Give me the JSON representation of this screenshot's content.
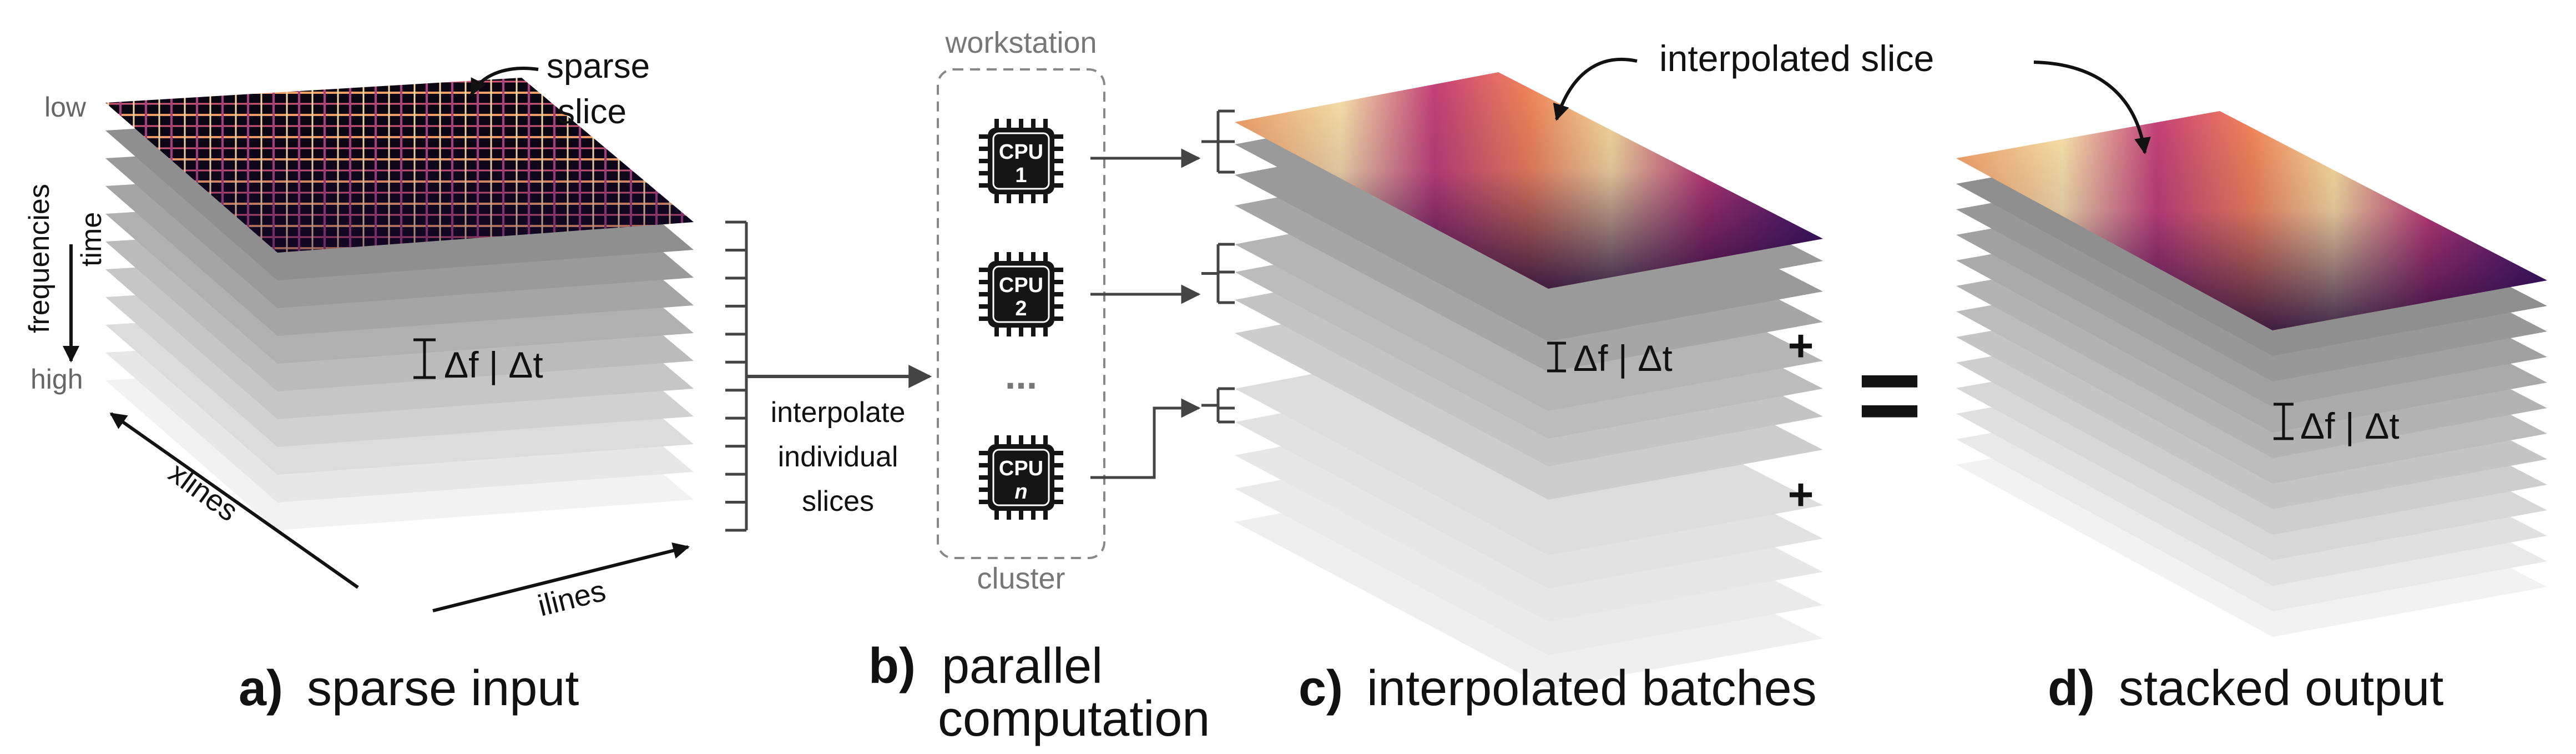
{
  "panel_a": {
    "callout": [
      "sparse",
      "slice"
    ],
    "freq_label": "frequencies",
    "time_label": "time",
    "low_label": "low",
    "high_label": "high",
    "delta_label": "Δf | Δt",
    "xlines_label": "xlines",
    "ilines_label": "ilines",
    "interpolate_label": [
      "interpolate",
      "individual",
      "slices"
    ],
    "caption_letter": "a)",
    "caption_text": "sparse input"
  },
  "panel_b": {
    "workstation_label": "workstation",
    "cluster_label": "cluster",
    "cpus": [
      {
        "top": "CPU",
        "num": "1"
      },
      {
        "top": "CPU",
        "num": "2"
      },
      {
        "top": "CPU",
        "num": "n"
      }
    ],
    "ellipsis": "...",
    "caption_letter": "b)",
    "caption_text": [
      "parallel",
      "computation"
    ]
  },
  "panel_c": {
    "callout": "interpolated slice",
    "delta_label": "Δf | Δt",
    "plus": "+",
    "caption_letter": "c)",
    "caption_text": "interpolated batches"
  },
  "equals": "=",
  "panel_d": {
    "delta_label": "Δf | Δt",
    "caption_letter": "d)",
    "caption_text": "stacked output"
  },
  "colors": {
    "magma_light": "#fde9b0",
    "magma_orange": "#f7894e",
    "magma_pink": "#c23b6c",
    "magma_purple": "#5b1d80",
    "magma_dark": "#1a0838",
    "layer_dark": "#8f8f8f",
    "layer_light": "#f2f2f2",
    "arrow": "#444444",
    "cpu_body": "#151515",
    "dashed_box": "#888888"
  }
}
